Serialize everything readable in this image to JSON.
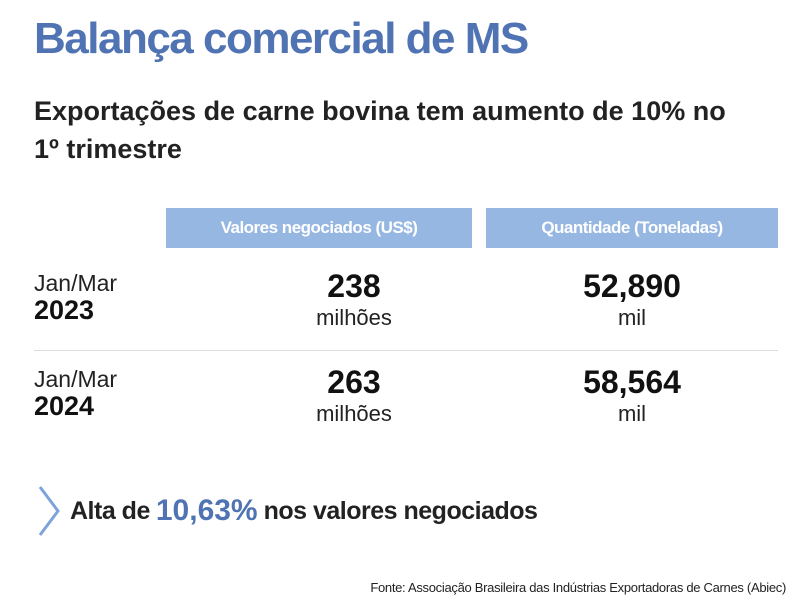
{
  "header": {
    "title": "Balança comercial de MS",
    "subtitle": "Exportações de carne bovina tem aumento de 10% no 1º trimestre"
  },
  "table": {
    "columns": [
      "Valores negociados (US$)",
      "Quantidade (Toneladas)"
    ],
    "rows": [
      {
        "period_month": "Jan/Mar",
        "period_year": "2023",
        "value": "238",
        "value_unit": "milhões",
        "quantity": "52,890",
        "quantity_unit": "mil"
      },
      {
        "period_month": "Jan/Mar",
        "period_year": "2024",
        "value": "263",
        "value_unit": "milhões",
        "quantity": "58,564",
        "quantity_unit": "mil"
      }
    ]
  },
  "highlight": {
    "prefix": "Alta de",
    "percent": "10,63%",
    "suffix": "nos valores negociados",
    "icon": "chevron-right-icon"
  },
  "source": "Fonte: Associação Brasileira das Indústrias Exportadoras de Carnes (Abiec)",
  "colors": {
    "accent": "#4f73b3",
    "header_bg": "#97b7e3"
  },
  "chart_data": {
    "type": "table",
    "title": "Balança comercial de MS",
    "subtitle": "Exportações de carne bovina tem aumento de 10% no 1º trimestre",
    "columns": [
      "Valores negociados (US$)",
      "Quantidade (Toneladas)"
    ],
    "rows": [
      {
        "period": "Jan/Mar 2023",
        "values": [
          238,
          52.89
        ]
      },
      {
        "period": "Jan/Mar 2024",
        "values": [
          263,
          58.564
        ]
      }
    ],
    "units": [
      "milhões",
      "mil"
    ],
    "annotation": "Alta de 10,63% nos valores negociados"
  }
}
